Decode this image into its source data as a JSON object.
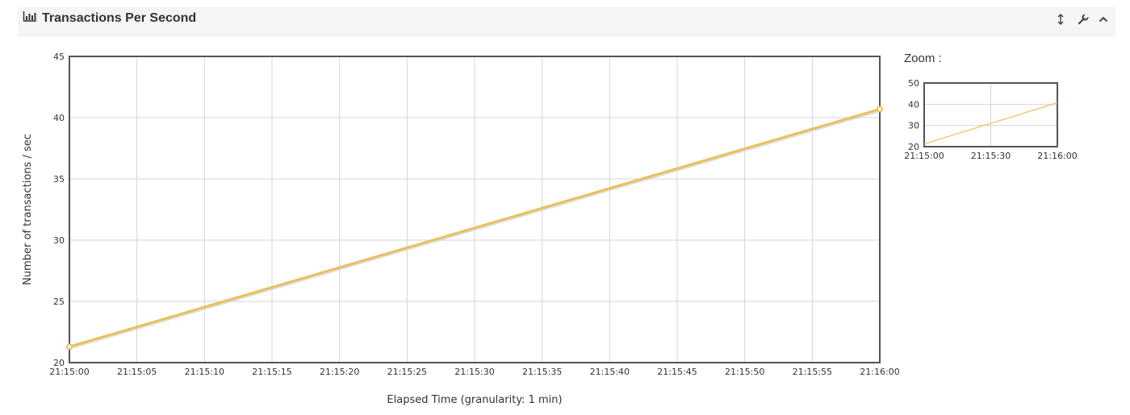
{
  "header": {
    "title": "Transactions Per Second",
    "title_icon": "bar-chart-icon",
    "controls": [
      {
        "name": "resize-icon",
        "glyph": "↕"
      },
      {
        "name": "wrench-icon",
        "glyph": "wrench"
      },
      {
        "name": "collapse-icon",
        "glyph": "chevron-up"
      }
    ]
  },
  "zoom": {
    "label": "Zoom :"
  },
  "colors": {
    "series": "#e8c15a",
    "grid": "#d4d4d4",
    "frame": "#545454"
  },
  "chart_data": [
    {
      "type": "line",
      "title": "",
      "xlabel": "Elapsed Time (granularity: 1 min)",
      "ylabel": "Number of transactions / sec",
      "x_ticks": [
        "21:15:00",
        "21:15:05",
        "21:15:10",
        "21:15:15",
        "21:15:20",
        "21:15:25",
        "21:15:30",
        "21:15:35",
        "21:15:40",
        "21:15:45",
        "21:15:50",
        "21:15:55",
        "21:16:00"
      ],
      "y_ticks": [
        20,
        25,
        30,
        35,
        40,
        45
      ],
      "xlim_seconds": [
        0,
        60
      ],
      "ylim": [
        20,
        45
      ],
      "grid": true,
      "series": [
        {
          "x": [
            "21:15:00",
            "21:16:00"
          ],
          "values": [
            21.3,
            40.7
          ]
        }
      ]
    },
    {
      "type": "line",
      "title": "",
      "x_ticks": [
        "21:15:00",
        "21:15:30",
        "21:16:00"
      ],
      "y_ticks": [
        20,
        30,
        40,
        50
      ],
      "xlim_seconds": [
        0,
        60
      ],
      "ylim": [
        20,
        50
      ],
      "grid": true,
      "series": [
        {
          "x": [
            "21:15:00",
            "21:16:00"
          ],
          "values": [
            21.3,
            40.7
          ]
        }
      ]
    }
  ]
}
